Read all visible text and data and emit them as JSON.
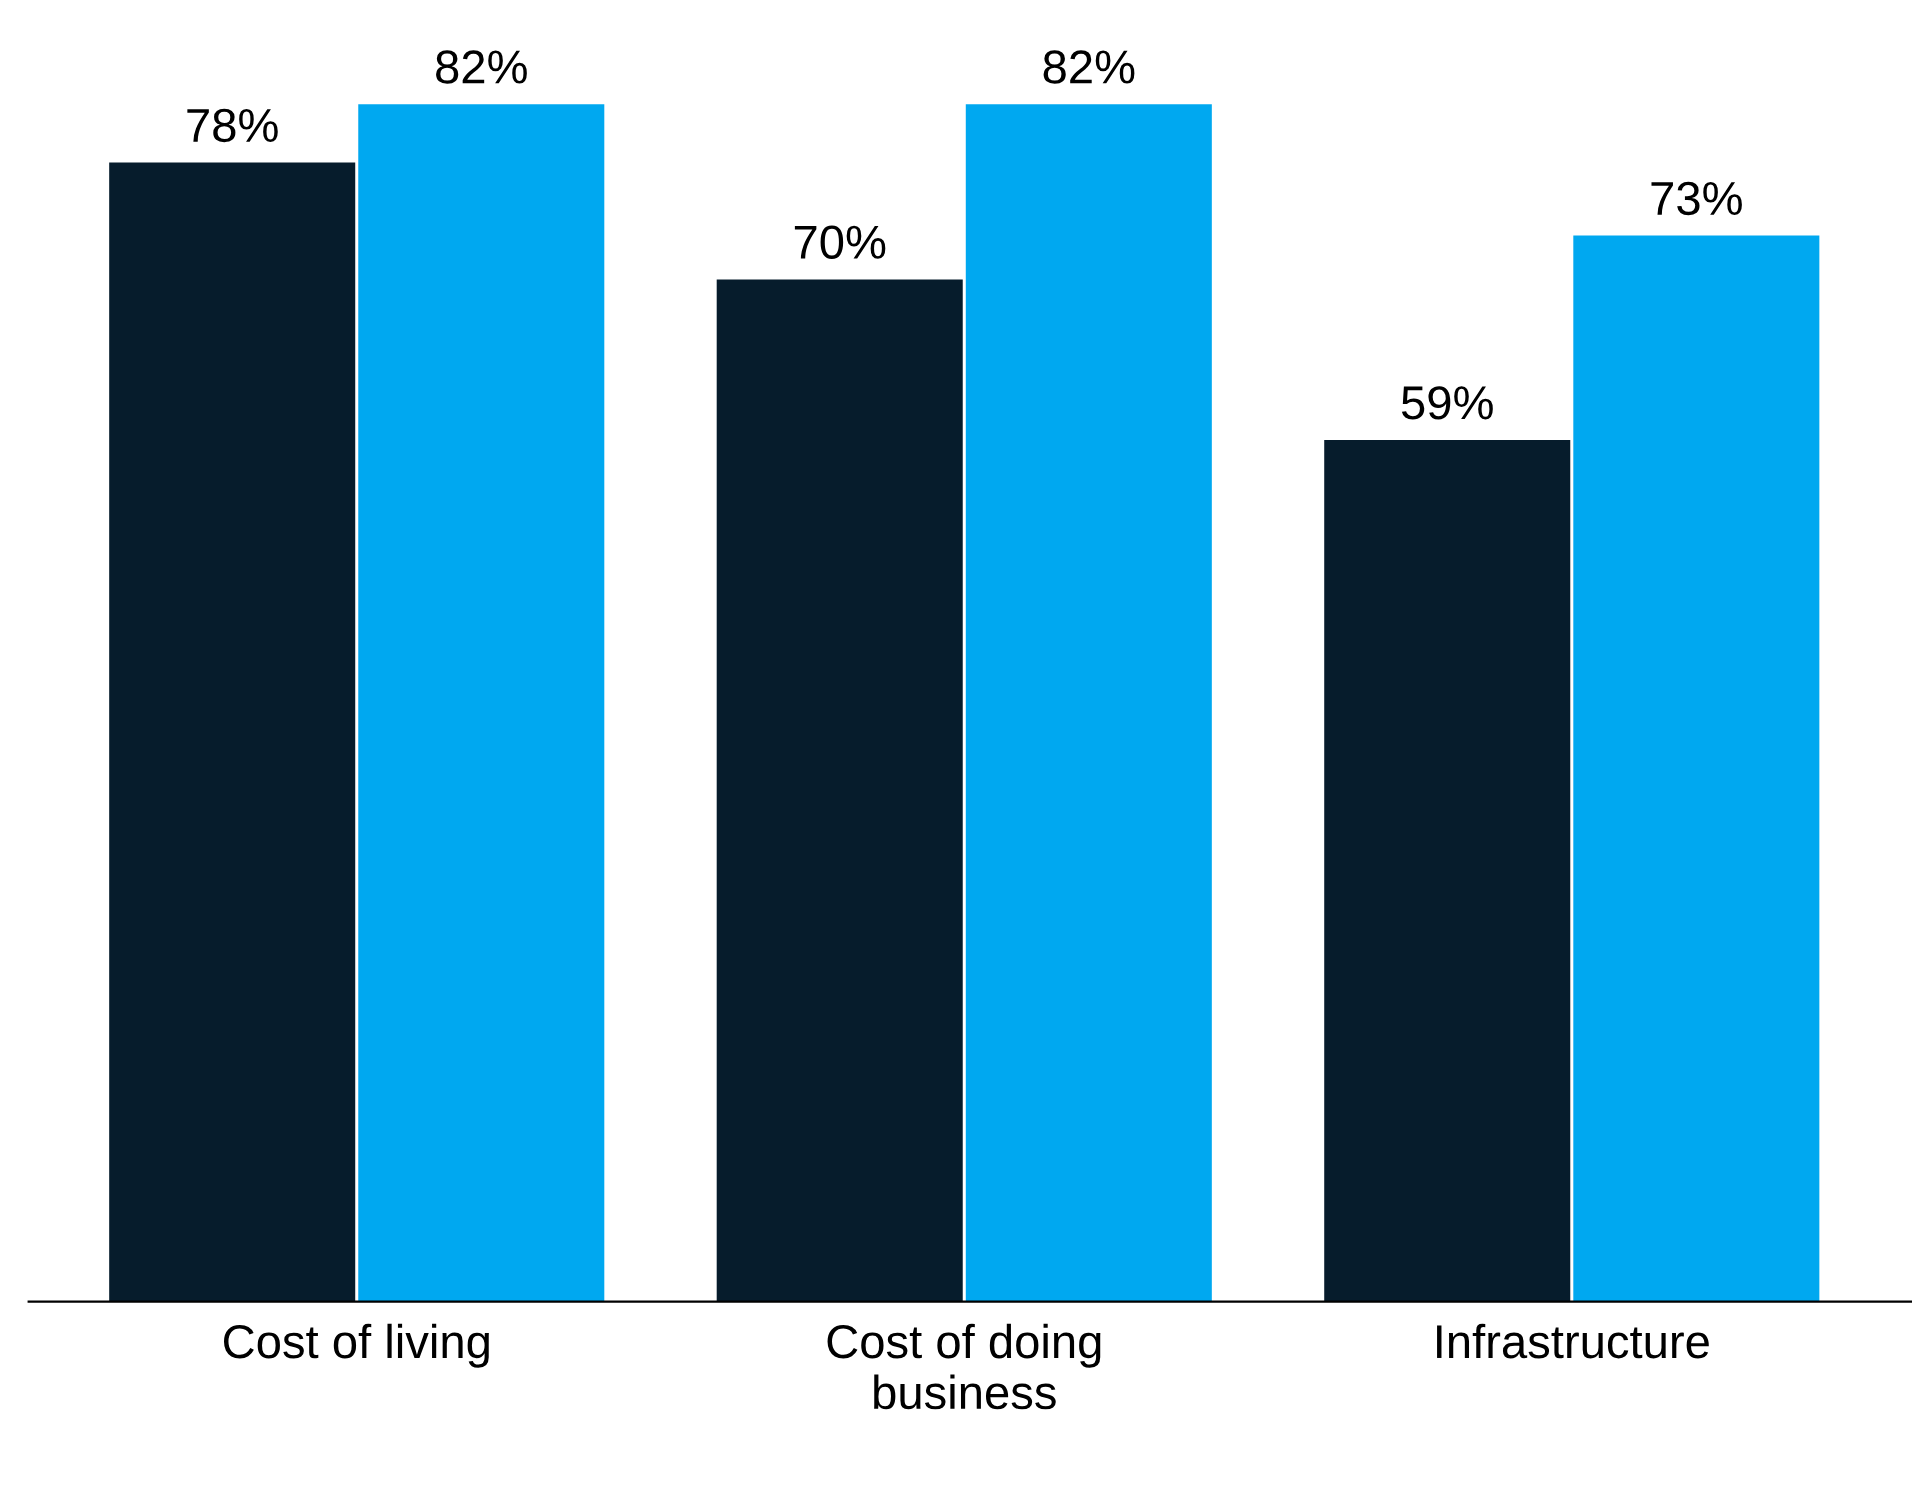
{
  "chart_data": {
    "type": "bar",
    "categories": [
      "Cost of living",
      "Cost of doing\nbusiness",
      "Infrastructure"
    ],
    "series": [
      {
        "color": "#061c2c",
        "values": [
          78,
          70,
          59
        ],
        "value_labels": [
          "78%",
          "70%",
          "59%"
        ]
      },
      {
        "color": "#00a8f0",
        "values": [
          82,
          82,
          73
        ],
        "value_labels": [
          "82%",
          "82%",
          "73%"
        ]
      }
    ],
    "grid": false,
    "legend": false,
    "tick_labels": "x"
  }
}
